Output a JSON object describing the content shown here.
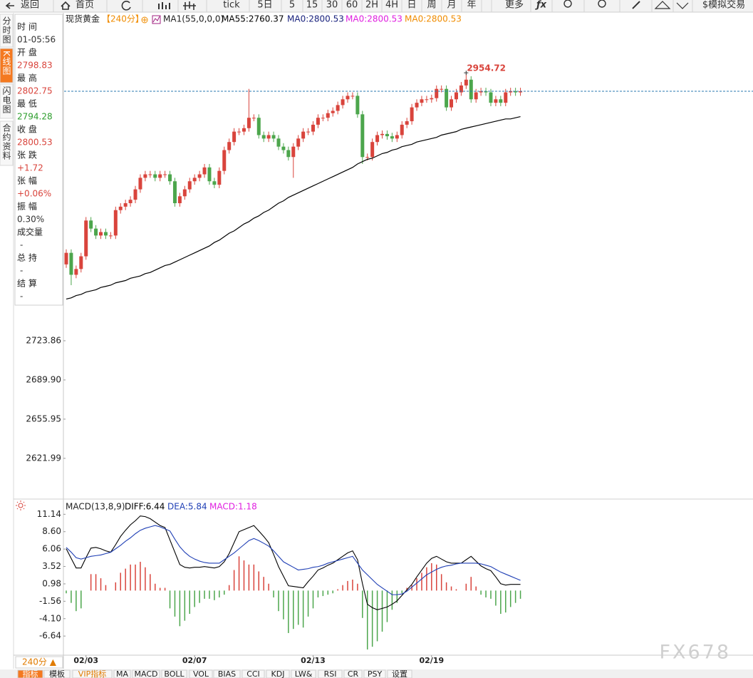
{
  "toolbar": {
    "items": [
      "返回",
      "首页",
      "tick",
      "5日",
      "5",
      "15",
      "30",
      "60",
      "2H",
      "4H",
      "日",
      "周",
      "月",
      "年",
      "更多",
      "$模拟交易"
    ]
  },
  "side_tabs": {
    "items": [
      "分时图",
      "K线图",
      "闪电图",
      "合约资料"
    ],
    "active": 1
  },
  "info_panel": [
    {
      "label": "时 间",
      "value": "01-05:56",
      "color": "#333333"
    },
    {
      "label": "开 盘",
      "value": "2798.83",
      "color": "#d9443c"
    },
    {
      "label": "最 高",
      "value": "2802.75",
      "color": "#d9443c"
    },
    {
      "label": "最 低",
      "value": "2794.28",
      "color": "#2e9e2e"
    },
    {
      "label": "收 盘",
      "value": "2800.53",
      "color": "#d9443c"
    },
    {
      "label": "张 跌",
      "value": "+1.72",
      "color": "#d9443c"
    },
    {
      "label": "张 幅",
      "value": "+0.06%",
      "color": "#d9443c"
    },
    {
      "label": "振 幅",
      "value": "0.30%",
      "color": "#333333"
    },
    {
      "label": "成交量",
      "value": "-",
      "color": "#333333"
    },
    {
      "label": "总 持",
      "value": "-",
      "color": "#333333"
    },
    {
      "label": "结 算",
      "value": "-",
      "color": "#333333"
    }
  ],
  "chart_data": [
    {
      "type": "candlestick",
      "title": "现货黄金",
      "period": "【240分】",
      "indicator": "MA1(55,0,0,0)",
      "legend": [
        {
          "text": "MA55:2760.37",
          "color": "#000000"
        },
        {
          "text": "MA0:2800.53",
          "color": "#1a237e"
        },
        {
          "text": "MA0:2800.53",
          "color": "#e020e0"
        },
        {
          "text": "MA0:2800.53",
          "color": "#f08c00"
        }
      ],
      "categories": [
        null,
        null,
        null,
        null,
        "02/03",
        null,
        null,
        null,
        null,
        null,
        null,
        null,
        null,
        null,
        null,
        null,
        null,
        null,
        null,
        null,
        null,
        null,
        null,
        null,
        null,
        null,
        "02/07",
        null,
        null,
        null,
        null,
        null,
        null,
        null,
        null,
        null,
        null,
        null,
        null,
        null,
        null,
        null,
        null,
        null,
        null,
        null,
        null,
        null,
        null,
        null,
        "02/13",
        null,
        null,
        null,
        null,
        null,
        null,
        null,
        null,
        null,
        null,
        null,
        null,
        null,
        null,
        null,
        null,
        null,
        null,
        null,
        null,
        null,
        null,
        null,
        "02/19",
        null,
        null,
        null,
        null,
        null,
        null,
        null,
        null,
        null,
        null,
        null,
        null,
        null,
        null,
        null,
        null,
        null,
        null
      ],
      "open": [
        2790,
        2800,
        2781,
        2786,
        2797,
        2828,
        2821,
        2815,
        2818,
        2815,
        2815,
        2837,
        2840,
        2843,
        2846,
        2855,
        2865,
        2868,
        2868,
        2865,
        2868,
        2868,
        2862,
        2843,
        2849,
        2855,
        2862,
        2865,
        2868,
        2874,
        2862,
        2859,
        2871,
        2889,
        2896,
        2905,
        2905,
        2908,
        2917,
        2917,
        2902,
        2899,
        2902,
        2899,
        2892,
        2889,
        2883,
        2892,
        2899,
        2905,
        2905,
        2911,
        2917,
        2917,
        2921,
        2923,
        2928,
        2933,
        2936,
        2936,
        2920,
        2883,
        2883,
        2896,
        2902,
        2903,
        2901,
        2899,
        2902,
        2911,
        2914,
        2926,
        2930,
        2933,
        2933,
        2934,
        2942,
        2942,
        2926,
        2933,
        2939,
        2945,
        2950,
        2933,
        2939,
        2940,
        2939,
        2930,
        2933,
        2930,
        2939,
        2940,
        2939
      ],
      "high": [
        2803,
        2803,
        2789,
        2800,
        2831,
        2831,
        2824,
        2821,
        2821,
        2818,
        2840,
        2843,
        2846,
        2849,
        2858,
        2868,
        2871,
        2871,
        2871,
        2871,
        2871,
        2871,
        2865,
        2852,
        2858,
        2865,
        2868,
        2871,
        2877,
        2877,
        2865,
        2874,
        2892,
        2899,
        2908,
        2908,
        2911,
        2942,
        2920,
        2920,
        2905,
        2905,
        2905,
        2902,
        2895,
        2892,
        2895,
        2902,
        2908,
        2908,
        2914,
        2920,
        2920,
        2924,
        2926,
        2931,
        2936,
        2939,
        2939,
        2939,
        2923,
        2886,
        2899,
        2905,
        2906,
        2906,
        2904,
        2905,
        2914,
        2917,
        2929,
        2933,
        2936,
        2936,
        2937,
        2945,
        2945,
        2945,
        2936,
        2942,
        2948,
        2954.72,
        2953,
        2942,
        2943,
        2943,
        2942,
        2936,
        2936,
        2942,
        2943,
        2943,
        2943
      ],
      "low": [
        2787,
        2772,
        2778,
        2783,
        2794,
        2818,
        2812,
        2812,
        2812,
        2812,
        2812,
        2834,
        2837,
        2840,
        2843,
        2852,
        2862,
        2865,
        2862,
        2862,
        2865,
        2859,
        2840,
        2840,
        2846,
        2852,
        2859,
        2862,
        2865,
        2859,
        2856,
        2856,
        2868,
        2886,
        2893,
        2902,
        2902,
        2905,
        2914,
        2899,
        2896,
        2896,
        2896,
        2889,
        2886,
        2880,
        2865,
        2889,
        2896,
        2902,
        2902,
        2908,
        2914,
        2914,
        2918,
        2920,
        2925,
        2930,
        2933,
        2917,
        2877,
        2880,
        2880,
        2893,
        2899,
        2898,
        2896,
        2896,
        2899,
        2908,
        2911,
        2923,
        2927,
        2930,
        2930,
        2931,
        2939,
        2923,
        2923,
        2930,
        2936,
        2942,
        2930,
        2930,
        2936,
        2936,
        2927,
        2927,
        2927,
        2927,
        2936,
        2936,
        2936
      ],
      "close": [
        2800,
        2781,
        2786,
        2797,
        2828,
        2821,
        2815,
        2818,
        2815,
        2815,
        2837,
        2840,
        2843,
        2846,
        2855,
        2865,
        2868,
        2868,
        2865,
        2868,
        2868,
        2862,
        2843,
        2849,
        2855,
        2862,
        2865,
        2868,
        2874,
        2862,
        2859,
        2871,
        2889,
        2896,
        2905,
        2905,
        2908,
        2917,
        2917,
        2902,
        2899,
        2902,
        2899,
        2892,
        2889,
        2883,
        2892,
        2899,
        2905,
        2905,
        2911,
        2917,
        2917,
        2921,
        2923,
        2928,
        2933,
        2936,
        2936,
        2920,
        2883,
        2883,
        2896,
        2902,
        2903,
        2901,
        2899,
        2902,
        2911,
        2914,
        2926,
        2930,
        2933,
        2933,
        2934,
        2942,
        2942,
        2926,
        2933,
        2939,
        2945,
        2950,
        2933,
        2939,
        2940,
        2939,
        2930,
        2933,
        2930,
        2939,
        2940,
        2939,
        2940
      ],
      "ma": {
        "color": "#000000",
        "values": [
          2760,
          2761,
          2763,
          2764,
          2766,
          2767,
          2768,
          2770,
          2771,
          2772,
          2774,
          2775,
          2776,
          2778,
          2779,
          2780,
          2782,
          2783,
          2785,
          2787,
          2789,
          2790,
          2792,
          2794,
          2796,
          2798,
          2800,
          2802,
          2804,
          2806,
          2809,
          2811,
          2814,
          2817,
          2819,
          2822,
          2825,
          2827,
          2830,
          2832,
          2835,
          2837,
          2840,
          2843,
          2845,
          2848,
          2850,
          2852,
          2854,
          2856,
          2858,
          2860,
          2862,
          2864,
          2866,
          2868,
          2870,
          2872,
          2874,
          2877,
          2879,
          2881,
          2882,
          2884,
          2886,
          2887,
          2889,
          2890,
          2892,
          2893,
          2894,
          2896,
          2897,
          2898,
          2899,
          2900,
          2902,
          2903,
          2904,
          2905,
          2907,
          2908,
          2909,
          2910,
          2911,
          2912,
          2913,
          2914,
          2915,
          2916,
          2916,
          2917,
          2918
        ]
      },
      "up_color": "#d9443c",
      "down_color": "#4ca64c",
      "last_price_line": true,
      "annotation": "2954.72",
      "ylim": [
        2592.9,
        2997.4
      ],
      "yticks": [
        2723.86,
        {
          "value": 2689.9,
          "label": "2689.90"
        },
        2655.95,
        2621.99
      ]
    },
    {
      "type": "macd",
      "title": "MACD(13,8,9)",
      "legend": [
        {
          "text": "DIFF:6.44",
          "color": "#000000"
        },
        {
          "text": "DEA:5.84",
          "color": "#1f3fb5"
        },
        {
          "text": "MACD:1.18",
          "color": "#e020e0"
        }
      ],
      "series": [
        {
          "color": "#000000",
          "values": [
            6.1,
            4.7,
            3.3,
            3.3,
            4.8,
            6.2,
            6.3,
            6.1,
            5.8,
            5.6,
            6.7,
            7.9,
            8.8,
            9.6,
            10.2,
            10.9,
            10.8,
            10.5,
            10.0,
            9.5,
            9.2,
            7.4,
            5.6,
            3.8,
            3.4,
            3.3,
            3.4,
            3.4,
            3.5,
            3.4,
            3.3,
            3.5,
            4.2,
            5.4,
            7.0,
            8.6,
            8.9,
            9.2,
            9.5,
            8.7,
            7.9,
            7.0,
            5.3,
            3.5,
            2.1,
            0.7,
            0.6,
            0.5,
            0.4,
            1.3,
            2.1,
            3.0,
            3.3,
            3.7,
            4.0,
            4.5,
            5.0,
            5.5,
            5.8,
            4.5,
            1.0,
            -2.0,
            -2.5,
            -2.8,
            -2.6,
            -2.4,
            -2.0,
            -1.5,
            -0.7,
            0.1,
            0.9,
            2.0,
            3.0,
            4.0,
            4.7,
            5.0,
            4.6,
            4.2,
            4.0,
            4.0,
            4.0,
            4.5,
            5.0,
            4.3,
            3.6,
            3.2,
            2.9,
            2.0,
            1.0,
            0.8,
            0.9,
            0.9,
            0.9
          ]
        },
        {
          "color": "#1f3fb5",
          "values": [
            6.3,
            5.6,
            4.8,
            4.6,
            4.8,
            5.0,
            5.1,
            5.2,
            5.4,
            5.6,
            6.1,
            6.6,
            7.2,
            7.7,
            8.3,
            8.8,
            9.1,
            9.3,
            9.5,
            9.3,
            9.0,
            8.7,
            7.5,
            6.4,
            5.6,
            5.0,
            4.6,
            4.3,
            4.1,
            4.0,
            4.0,
            4.0,
            4.5,
            5.0,
            5.5,
            6.1,
            6.7,
            7.3,
            7.6,
            7.3,
            6.9,
            6.5,
            5.8,
            5.0,
            4.2,
            3.8,
            3.4,
            3.0,
            3.1,
            3.2,
            3.4,
            3.5,
            3.7,
            4.0,
            4.2,
            4.4,
            4.6,
            4.8,
            5.0,
            4.0,
            3.0,
            2.3,
            1.6,
            0.9,
            0.4,
            -0.1,
            -0.6,
            -0.6,
            -0.5,
            -0.1,
            0.5,
            1.1,
            1.7,
            2.3,
            2.7,
            3.1,
            3.4,
            3.6,
            3.7,
            3.9,
            4.0,
            4.0,
            4.0,
            4.0,
            3.9,
            3.7,
            3.5,
            3.1,
            2.7,
            2.4,
            2.1,
            1.8,
            1.5
          ]
        }
      ],
      "histogram": {
        "up_color": "#d9443c",
        "down_color": "#4ca64c",
        "values": [
          -0.4,
          -1.8,
          -3.0,
          -2.6,
          0.0,
          2.4,
          2.4,
          1.8,
          0.8,
          0.0,
          1.2,
          2.6,
          3.2,
          3.8,
          3.8,
          4.2,
          3.4,
          2.4,
          1.0,
          0.4,
          0.4,
          -2.6,
          -3.8,
          -5.2,
          -4.4,
          -3.4,
          -2.4,
          -1.8,
          -1.2,
          -1.2,
          -1.4,
          -1.0,
          -0.6,
          0.8,
          3.0,
          5.0,
          4.4,
          3.8,
          3.8,
          2.8,
          2.0,
          1.0,
          -1.0,
          -3.0,
          -4.2,
          -6.2,
          -5.6,
          -5.0,
          -5.4,
          -3.8,
          -2.6,
          -1.0,
          -0.8,
          -0.6,
          -0.4,
          0.2,
          0.8,
          1.4,
          1.6,
          1.0,
          -4.0,
          -8.6,
          -8.2,
          -7.4,
          -6.0,
          -4.6,
          -2.8,
          -1.8,
          -0.4,
          0.4,
          0.8,
          1.8,
          2.6,
          3.4,
          4.0,
          3.8,
          2.4,
          1.2,
          0.6,
          0.2,
          0.0,
          1.0,
          2.0,
          0.6,
          -0.6,
          -1.0,
          -1.2,
          -2.2,
          -3.4,
          -3.2,
          -2.4,
          -1.8,
          -1.2
        ]
      },
      "ylim": [
        -9.33,
        11.8
      ],
      "yticks": [
        11.14,
        {
          "value": 8.6,
          "label": "8.60"
        },
        6.06,
        3.52,
        0.98,
        -1.56,
        {
          "value": -4.1,
          "label": "-4.10"
        },
        -6.64
      ]
    }
  ],
  "period_selector": "240分 ▲",
  "indicator_tabs": {
    "items": [
      "指标",
      "模板",
      "VIP指标",
      "MA",
      "MACD",
      "BOLL",
      "VOL",
      "BIAS",
      "CCI",
      "KDJ",
      "LW&",
      "RSI",
      "CR",
      "PSY",
      "设置"
    ],
    "active": 0,
    "highlight": 2
  },
  "watermark": "FX678"
}
